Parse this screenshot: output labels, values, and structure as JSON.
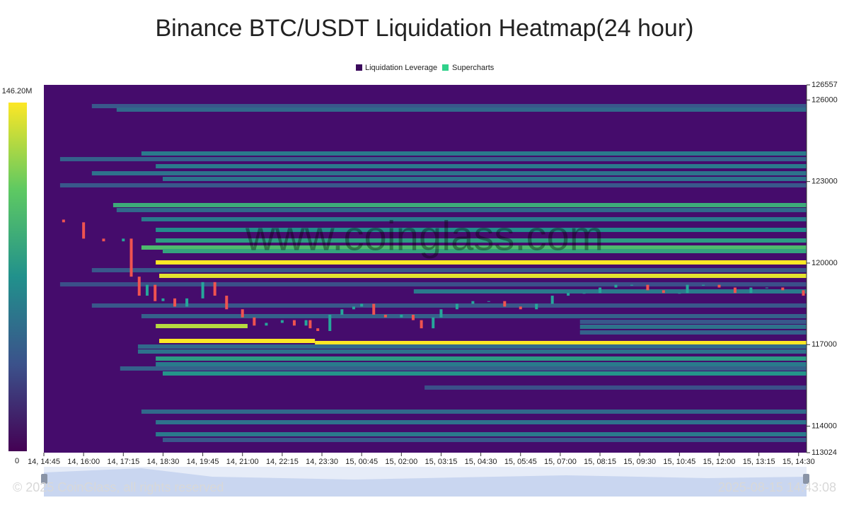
{
  "chart_data": {
    "type": "heatmap",
    "title": "Binance BTC/USDT Liquidation Heatmap(24 hour)",
    "watermark": "www.coinglass.com",
    "footer": "© 2025 CoinGlass, all rights reserved",
    "timestamp": "2025-08-15 14:43:08",
    "background": "#450c6c",
    "colorscale": [
      "#440154",
      "#3b528b",
      "#21918c",
      "#5ec962",
      "#fde725"
    ],
    "colorlim": [
      0,
      146.2
    ],
    "colorticks": [
      {
        "value": 146.2,
        "label": "146.20M"
      },
      0
    ],
    "ylim": [
      113024,
      126557
    ],
    "yticks": [
      126557,
      126000,
      123000,
      120000,
      117000,
      114000,
      113024
    ],
    "xlim": [
      0,
      24
    ],
    "xticks": [
      {
        "value": 0,
        "label": "14, 14:45"
      },
      {
        "value": 1.25,
        "label": "14, 16:00"
      },
      {
        "value": 2.5,
        "label": "14, 17:15"
      },
      {
        "value": 3.75,
        "label": "14, 18:30"
      },
      {
        "value": 5,
        "label": "14, 19:45"
      },
      {
        "value": 6.25,
        "label": "14, 21:00"
      },
      {
        "value": 7.5,
        "label": "14, 22:15"
      },
      {
        "value": 8.75,
        "label": "14, 23:30"
      },
      {
        "value": 10,
        "label": "15, 00:45"
      },
      {
        "value": 11.25,
        "label": "15, 02:00"
      },
      {
        "value": 12.5,
        "label": "15, 03:15"
      },
      {
        "value": 13.75,
        "label": "15, 04:30"
      },
      {
        "value": 15,
        "label": "15, 05:45"
      },
      {
        "value": 16.25,
        "label": "15, 07:00"
      },
      {
        "value": 17.5,
        "label": "15, 08:15"
      },
      {
        "value": 18.75,
        "label": "15, 09:30"
      },
      {
        "value": 20,
        "label": "15, 10:45"
      },
      {
        "value": 21.25,
        "label": "15, 12:00"
      },
      {
        "value": 22.5,
        "label": "15, 13:15"
      },
      {
        "value": 23.75,
        "label": "15, 14:30"
      }
    ],
    "heatmap": {
      "name": "Liquidation Leverage",
      "color": "#3b0a5c",
      "bands": [
        {
          "price": 125776,
          "start": 1.51,
          "end": 24,
          "value": 40
        },
        {
          "price": 125646,
          "start": 2.29,
          "end": 24,
          "value": 50
        },
        {
          "price": 124033,
          "start": 3.07,
          "end": 24,
          "value": 60
        },
        {
          "price": 123824,
          "start": 0.51,
          "end": 24,
          "value": 45
        },
        {
          "price": 123564,
          "start": 3.52,
          "end": 24,
          "value": 60
        },
        {
          "price": 123304,
          "start": 1.51,
          "end": 24,
          "value": 55
        },
        {
          "price": 123096,
          "start": 3.74,
          "end": 24,
          "value": 55
        },
        {
          "price": 122861,
          "start": 0.51,
          "end": 24,
          "value": 40
        },
        {
          "price": 122133,
          "start": 2.18,
          "end": 24,
          "value": 90
        },
        {
          "price": 121951,
          "start": 2.29,
          "end": 24,
          "value": 50
        },
        {
          "price": 121612,
          "start": 3.07,
          "end": 24,
          "value": 60
        },
        {
          "price": 121222,
          "start": 3.52,
          "end": 24,
          "value": 70
        },
        {
          "price": 120831,
          "start": 3.52,
          "end": 24,
          "value": 80
        },
        {
          "price": 120571,
          "start": 3.07,
          "end": 24,
          "value": 100
        },
        {
          "price": 120441,
          "start": 3.74,
          "end": 24,
          "value": 85
        },
        {
          "price": 120025,
          "start": 3.52,
          "end": 24,
          "value": 146
        },
        {
          "price": 119738,
          "start": 1.51,
          "end": 24,
          "value": 40
        },
        {
          "price": 119530,
          "start": 3.63,
          "end": 24,
          "value": 140
        },
        {
          "price": 119218,
          "start": 0.51,
          "end": 24,
          "value": 35
        },
        {
          "price": 118958,
          "start": 11.64,
          "end": 24,
          "value": 60
        },
        {
          "price": 118437,
          "start": 1.51,
          "end": 24,
          "value": 40
        },
        {
          "price": 118047,
          "start": 3.07,
          "end": 24,
          "value": 45
        },
        {
          "price": 117839,
          "start": 16.87,
          "end": 24,
          "value": 40
        },
        {
          "price": 117682,
          "start": 3.52,
          "end": 6.41,
          "value": 130
        },
        {
          "price": 117657,
          "start": 16.87,
          "end": 24,
          "value": 55
        },
        {
          "price": 117448,
          "start": 16.87,
          "end": 24,
          "value": 45
        },
        {
          "price": 117136,
          "start": 3.63,
          "end": 8.53,
          "value": 146
        },
        {
          "price": 117058,
          "start": 8.53,
          "end": 24,
          "value": 146
        },
        {
          "price": 116928,
          "start": 2.96,
          "end": 24,
          "value": 50
        },
        {
          "price": 116746,
          "start": 2.96,
          "end": 24,
          "value": 55
        },
        {
          "price": 116485,
          "start": 3.52,
          "end": 24,
          "value": 80
        },
        {
          "price": 116277,
          "start": 3.52,
          "end": 24,
          "value": 60
        },
        {
          "price": 116121,
          "start": 2.4,
          "end": 24,
          "value": 45
        },
        {
          "price": 115939,
          "start": 3.74,
          "end": 24,
          "value": 75
        },
        {
          "price": 115418,
          "start": 11.98,
          "end": 24,
          "value": 35
        },
        {
          "price": 114534,
          "start": 3.07,
          "end": 24,
          "value": 50
        },
        {
          "price": 114143,
          "start": 3.52,
          "end": 24,
          "value": 55
        },
        {
          "price": 113701,
          "start": 3.52,
          "end": 24,
          "value": 60
        },
        {
          "price": 113492,
          "start": 3.74,
          "end": 24,
          "value": 40
        }
      ]
    },
    "price": {
      "name": "Supercharts",
      "color": "#2fd18a",
      "up_color": "#26a69a",
      "down_color": "#ef5350",
      "x": [
        0,
        0.62,
        1.25,
        1.88,
        2.5,
        2.75,
        3.0,
        3.25,
        3.5,
        3.75,
        4.12,
        4.5,
        5.0,
        5.38,
        5.75,
        6.25,
        6.62,
        7.0,
        7.5,
        7.88,
        8.25,
        8.38,
        8.62,
        9.0,
        9.38,
        9.75,
        10.0,
        10.38,
        10.75,
        11.25,
        11.62,
        11.88,
        12.25,
        12.5,
        13.0,
        13.5,
        14.0,
        14.5,
        15.0,
        15.5,
        16.0,
        16.5,
        17.0,
        17.5,
        18.0,
        18.5,
        19.0,
        19.5,
        20.0,
        20.25,
        20.75,
        21.25,
        21.75,
        22.25,
        22.75,
        23.25,
        23.9
      ],
      "values": [
        121600,
        121500,
        120900,
        120800,
        120900,
        119500,
        118800,
        119200,
        118600,
        118700,
        118400,
        118700,
        119300,
        118800,
        118300,
        118000,
        117700,
        117800,
        117900,
        117700,
        117900,
        117600,
        117500,
        118100,
        118300,
        118400,
        118500,
        118100,
        118000,
        118100,
        117900,
        117600,
        118000,
        118300,
        118500,
        118600,
        118600,
        118400,
        118300,
        118500,
        118800,
        118900,
        118900,
        119100,
        119200,
        119200,
        119000,
        118900,
        118900,
        119200,
        119200,
        119100,
        118900,
        119100,
        119100,
        119000,
        118800
      ]
    }
  }
}
